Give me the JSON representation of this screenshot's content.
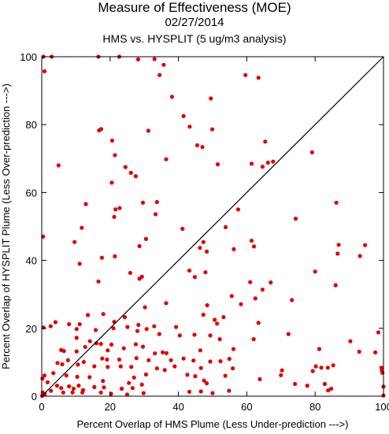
{
  "chart_data": {
    "type": "scatter",
    "title": "Measure of Effectiveness (MOE)",
    "subtitle_date": "02/27/2014",
    "subtitle_comparison": "HMS vs. HYSPLIT  (5 ug/m3 analysis)",
    "xlabel": "Percent Overlap of HMS Plume (Less Under-prediction --->)",
    "ylabel": "Percent Overlap of HYSPLIT Plume (Less Over-prediction --->)",
    "xlim": [
      0,
      100
    ],
    "ylim": [
      0,
      100
    ],
    "x_ticks": [
      0,
      20,
      40,
      60,
      80,
      100
    ],
    "y_ticks": [
      0,
      20,
      40,
      60,
      80,
      100
    ],
    "grid": false,
    "reference_line": "y = x",
    "marker_color": "#e00000",
    "line_color": "#000000",
    "points": [
      [
        0.5,
        100
      ],
      [
        2.9,
        100
      ],
      [
        0.8,
        95.7
      ],
      [
        16.6,
        100
      ],
      [
        22.7,
        100
      ],
      [
        28.2,
        99.2
      ],
      [
        33,
        99.3
      ],
      [
        35.7,
        97.6
      ],
      [
        34.5,
        94.6
      ],
      [
        59.6,
        94.6
      ],
      [
        63.4,
        93.8
      ],
      [
        38.1,
        88.2
      ],
      [
        49.5,
        87.7
      ],
      [
        41.5,
        82.5
      ],
      [
        43.3,
        79.4
      ],
      [
        49.9,
        78.6
      ],
      [
        16.8,
        78.3
      ],
      [
        17.4,
        78.7
      ],
      [
        31.2,
        78.2
      ],
      [
        20.6,
        75.3
      ],
      [
        47,
        73.4
      ],
      [
        65.4,
        75
      ],
      [
        45.5,
        73.9
      ],
      [
        79.1,
        71.8
      ],
      [
        21.4,
        71
      ],
      [
        36.4,
        69.8
      ],
      [
        51.5,
        68.3
      ],
      [
        61.4,
        68.5
      ],
      [
        64.6,
        67.6
      ],
      [
        66.2,
        68.8
      ],
      [
        67.7,
        69.1
      ],
      [
        4.9,
        68
      ],
      [
        24.5,
        67.5
      ],
      [
        26.1,
        65.8
      ],
      [
        27.5,
        64.8
      ],
      [
        20.5,
        62.9
      ],
      [
        29.6,
        57
      ],
      [
        33.7,
        57.2
      ],
      [
        12.9,
        56.6
      ],
      [
        21.6,
        55
      ],
      [
        22.8,
        55.4
      ],
      [
        33.3,
        53.6
      ],
      [
        57.5,
        55
      ],
      [
        21.2,
        52.8
      ],
      [
        74.3,
        52.3
      ],
      [
        86.2,
        57
      ],
      [
        11.7,
        49.6
      ],
      [
        41.2,
        49.3
      ],
      [
        53.8,
        49.8
      ],
      [
        0.4,
        47
      ],
      [
        9.6,
        45.4
      ],
      [
        30.5,
        46.3
      ],
      [
        28.6,
        44.2
      ],
      [
        46.3,
        43.7
      ],
      [
        47.3,
        45.4
      ],
      [
        48.3,
        42.6
      ],
      [
        56.2,
        43.3
      ],
      [
        61.4,
        45.8
      ],
      [
        62.1,
        44.1
      ],
      [
        86.9,
        44.6
      ],
      [
        94.6,
        44.5
      ],
      [
        93.1,
        41.3
      ],
      [
        86.6,
        42
      ],
      [
        21.4,
        41.2
      ],
      [
        17.6,
        40.8
      ],
      [
        11.1,
        39
      ],
      [
        43.2,
        37
      ],
      [
        47.9,
        36.5
      ],
      [
        44.8,
        35.1
      ],
      [
        25.9,
        36.3
      ],
      [
        29.3,
        35.2
      ],
      [
        28.6,
        34.6
      ],
      [
        16.6,
        33.8
      ],
      [
        61,
        33.6
      ],
      [
        67,
        33.5
      ],
      [
        80,
        36.7
      ],
      [
        86,
        32.7
      ],
      [
        55.6,
        29.5
      ],
      [
        58.3,
        27.1
      ],
      [
        62.5,
        28.8
      ],
      [
        73.2,
        28.3
      ],
      [
        64.6,
        31.4
      ],
      [
        36.4,
        27.4
      ],
      [
        30.2,
        26.2
      ],
      [
        48.4,
        26.8
      ],
      [
        47.3,
        24
      ],
      [
        18,
        24.2
      ],
      [
        24.3,
        23.3
      ],
      [
        13.5,
        23.9
      ],
      [
        4,
        21.8
      ],
      [
        8,
        21.2
      ],
      [
        11.1,
        21.2
      ],
      [
        21.2,
        21.9
      ],
      [
        28.3,
        21
      ],
      [
        32.9,
        20.6
      ],
      [
        39.3,
        20.4
      ],
      [
        50.6,
        22.5
      ],
      [
        51.3,
        21.4
      ],
      [
        53.2,
        23.3
      ],
      [
        63.4,
        21.6
      ],
      [
        0.5,
        20.2
      ],
      [
        2.6,
        20.6
      ],
      [
        10.2,
        19.8
      ],
      [
        15.8,
        19.5
      ],
      [
        21,
        20
      ],
      [
        25.1,
        20.4
      ],
      [
        28,
        19.2
      ],
      [
        30.7,
        19.8
      ],
      [
        34.4,
        18.3
      ],
      [
        40.4,
        17.9
      ],
      [
        44.7,
        18.1
      ],
      [
        49.3,
        17.9
      ],
      [
        52.1,
        16.8
      ],
      [
        62,
        16.8
      ],
      [
        72.2,
        18.3
      ],
      [
        90.3,
        16.2
      ],
      [
        98.5,
        18.8
      ],
      [
        10.2,
        17.2
      ],
      [
        14.1,
        16.2
      ],
      [
        16,
        15.6
      ],
      [
        17.3,
        15.4
      ],
      [
        12.7,
        14.5
      ],
      [
        5.7,
        13.6
      ],
      [
        6.5,
        13.3
      ],
      [
        10.2,
        13.2
      ],
      [
        19.3,
        13.5
      ],
      [
        20.4,
        15.2
      ],
      [
        24,
        14.1
      ],
      [
        27.5,
        15.3
      ],
      [
        29.6,
        14.6
      ],
      [
        33.1,
        12.6
      ],
      [
        35.4,
        12.9
      ],
      [
        36.5,
        12.7
      ],
      [
        46.4,
        13.5
      ],
      [
        56.1,
        13.9
      ],
      [
        81.2,
        13.9
      ],
      [
        92.9,
        13.1
      ],
      [
        97.6,
        12.9
      ],
      [
        7.7,
        10.6
      ],
      [
        12.3,
        10.1
      ],
      [
        17.7,
        11.1
      ],
      [
        19.1,
        10.8
      ],
      [
        22.7,
        10.8
      ],
      [
        27.7,
        11.2
      ],
      [
        31.3,
        10.6
      ],
      [
        37.8,
        10.6
      ],
      [
        41.5,
        11.1
      ],
      [
        38.9,
        8.8
      ],
      [
        44.4,
        10.5
      ],
      [
        49.3,
        10.2
      ],
      [
        52.3,
        10.3
      ],
      [
        54.9,
        11
      ],
      [
        4.6,
        9.8
      ],
      [
        6,
        9.4
      ],
      [
        10.6,
        9.3
      ],
      [
        15.4,
        8.8
      ],
      [
        19.3,
        8.6
      ],
      [
        23.1,
        8.8
      ],
      [
        26.2,
        8.6
      ],
      [
        33.7,
        8.2
      ],
      [
        36,
        7.7
      ],
      [
        46.6,
        8.3
      ],
      [
        55.9,
        8.2
      ],
      [
        70.3,
        7.6
      ],
      [
        79.3,
        7.4
      ],
      [
        80.2,
        8.8
      ],
      [
        81.8,
        8.4
      ],
      [
        83.7,
        8.4
      ],
      [
        85.3,
        9.1
      ],
      [
        99.4,
        8.4
      ],
      [
        99.5,
        7.6
      ],
      [
        99.7,
        6.9
      ],
      [
        0.8,
        6.1
      ],
      [
        3.4,
        6.8
      ],
      [
        7.2,
        6.1
      ],
      [
        10.4,
        5.7
      ],
      [
        14,
        5.6
      ],
      [
        17.9,
        4.5
      ],
      [
        25.5,
        3.9
      ],
      [
        27,
        5.5
      ],
      [
        30.5,
        6.4
      ],
      [
        42.6,
        6.3
      ],
      [
        44.9,
        5.9
      ],
      [
        53.7,
        6
      ],
      [
        63.8,
        5
      ],
      [
        70,
        6.2
      ],
      [
        0.2,
        5.2
      ],
      [
        1.7,
        4.1
      ],
      [
        4.5,
        3.1
      ],
      [
        5.7,
        2.4
      ],
      [
        8,
        2.9
      ],
      [
        9.3,
        2.2
      ],
      [
        10.8,
        3.1
      ],
      [
        12.1,
        1.8
      ],
      [
        15.4,
        2.7
      ],
      [
        18.2,
        2.6
      ],
      [
        23.4,
        2.2
      ],
      [
        26.6,
        2.4
      ],
      [
        29.3,
        3.4
      ],
      [
        47.5,
        4.6
      ],
      [
        48.3,
        3.8
      ],
      [
        54.8,
        1.6
      ],
      [
        74.1,
        3.6
      ],
      [
        77.7,
        3.1
      ],
      [
        82.8,
        3.6
      ],
      [
        83.8,
        1.7
      ],
      [
        84.7,
        2.2
      ],
      [
        100,
        2.8
      ],
      [
        0.3,
        1.1
      ],
      [
        0.9,
        0.6
      ],
      [
        2.7,
        1.6
      ],
      [
        6.3,
        1.1
      ],
      [
        9,
        1.1
      ],
      [
        11.9,
        1.1
      ],
      [
        17.3,
        1.1
      ],
      [
        20.3,
        0.7
      ],
      [
        25,
        0.5
      ],
      [
        29.8,
        0.9
      ],
      [
        43.2,
        1.3
      ],
      [
        46.6,
        1.4
      ],
      [
        50,
        0.9
      ],
      [
        0.1,
        0.1
      ],
      [
        100,
        0.2
      ]
    ]
  }
}
